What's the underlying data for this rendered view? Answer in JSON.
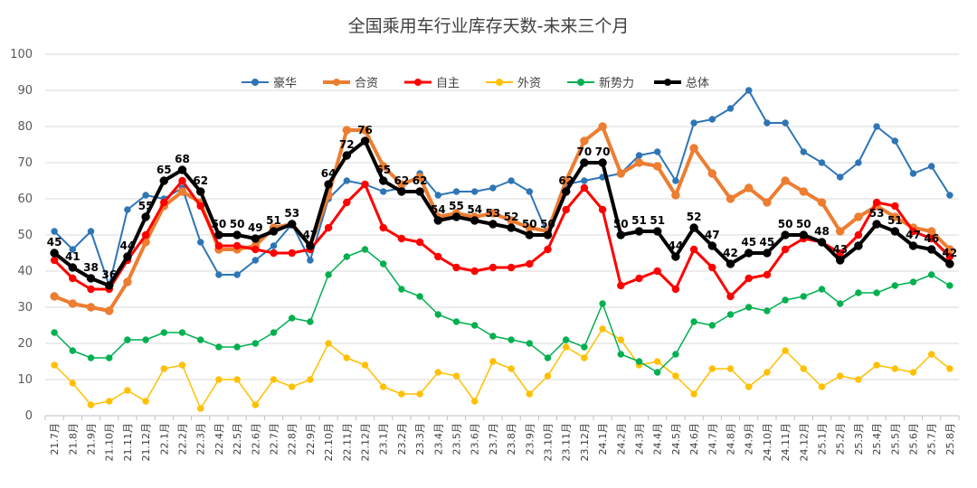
{
  "chart_data": {
    "type": "line",
    "title": "全国乘用车行业库存天数-未来三个月",
    "xlabel": "",
    "ylabel": "",
    "ylim": [
      0,
      100
    ],
    "yticks": [
      0,
      10,
      20,
      30,
      40,
      50,
      60,
      70,
      80,
      90,
      100
    ],
    "grid": "horizontal",
    "legend_position": "top",
    "x": [
      "21.7月",
      "21.8月",
      "21.9月",
      "21.10月",
      "21.11月",
      "21.12月",
      "22.1月",
      "22.2月",
      "22.3月",
      "22.4月",
      "22.5月",
      "22.6月",
      "22.7月",
      "22.8月",
      "22.9月",
      "22.10月",
      "22.11月",
      "22.12月",
      "23.1月",
      "23.2月",
      "23.3月",
      "23.4月",
      "23.5月",
      "23.6月",
      "23.7月",
      "23.8月",
      "23.9月",
      "23.10月",
      "23.11月",
      "23.12月",
      "24.1月",
      "24.2月",
      "24.3月",
      "24.4月",
      "24.5月",
      "24.6月",
      "24.7月",
      "24.8月",
      "24.9月",
      "24.10月",
      "24.11月",
      "24.12月",
      "25.1月",
      "25.2月",
      "25.3月",
      "25.4月",
      "25.5月",
      "25.6月",
      "25.7月",
      "25.8月"
    ],
    "series": [
      {
        "name": "豪华",
        "color": "#2E75B6",
        "width": 2,
        "values": [
          51,
          46,
          51,
          36,
          57,
          61,
          60,
          63,
          48,
          39,
          39,
          43,
          47,
          53,
          43,
          60,
          65,
          64,
          62,
          63,
          67,
          61,
          62,
          62,
          63,
          65,
          62,
          50,
          64,
          65,
          66,
          67,
          72,
          73,
          65,
          81,
          82,
          85,
          90,
          81,
          81,
          73,
          70,
          66,
          70,
          80,
          76,
          67,
          69,
          61
        ]
      },
      {
        "name": "合资",
        "color": "#ED7D31",
        "width": 4,
        "values": [
          33,
          31,
          30,
          29,
          37,
          48,
          58,
          62,
          59,
          46,
          46,
          47,
          52,
          53,
          47,
          61,
          79,
          79,
          69,
          64,
          66,
          55,
          56,
          55,
          56,
          54,
          52,
          51,
          65,
          76,
          80,
          67,
          70,
          69,
          61,
          74,
          67,
          60,
          63,
          59,
          65,
          62,
          59,
          51,
          55,
          58,
          55,
          52,
          51,
          46
        ]
      },
      {
        "name": "自主",
        "color": "#FF0000",
        "width": 3,
        "values": [
          43,
          38,
          35,
          35,
          43,
          50,
          59,
          65,
          58,
          47,
          47,
          46,
          45,
          45,
          46,
          52,
          59,
          64,
          52,
          49,
          48,
          44,
          41,
          40,
          41,
          41,
          42,
          46,
          57,
          63,
          57,
          36,
          38,
          40,
          35,
          46,
          41,
          33,
          38,
          39,
          46,
          49,
          48,
          45,
          50,
          59,
          58,
          51,
          49,
          44
        ]
      },
      {
        "name": "外资",
        "color": "#FFC000",
        "width": 1.5,
        "values": [
          14,
          9,
          3,
          4,
          7,
          4,
          13,
          14,
          2,
          10,
          10,
          3,
          10,
          8,
          10,
          20,
          16,
          14,
          8,
          6,
          6,
          12,
          11,
          4,
          15,
          13,
          6,
          11,
          19,
          16,
          24,
          21,
          14,
          15,
          11,
          6,
          13,
          13,
          8,
          12,
          18,
          13,
          8,
          11,
          10,
          14,
          13,
          12,
          17,
          13
        ]
      },
      {
        "name": "新势力",
        "color": "#00B050",
        "width": 1.5,
        "values": [
          23,
          18,
          16,
          16,
          21,
          21,
          23,
          23,
          21,
          19,
          19,
          20,
          23,
          27,
          26,
          39,
          44,
          46,
          42,
          35,
          33,
          28,
          26,
          25,
          22,
          21,
          20,
          16,
          21,
          19,
          31,
          17,
          15,
          12,
          17,
          26,
          25,
          28,
          30,
          29,
          32,
          33,
          35,
          31,
          34,
          34,
          36,
          37,
          39,
          36
        ]
      },
      {
        "name": "总体",
        "color": "#000000",
        "width": 4,
        "values": [
          45,
          41,
          38,
          36,
          44,
          55,
          65,
          68,
          62,
          50,
          50,
          49,
          51,
          53,
          47,
          64,
          72,
          76,
          65,
          62,
          62,
          54,
          55,
          54,
          53,
          52,
          50,
          50,
          62,
          70,
          70,
          50,
          51,
          51,
          44,
          52,
          47,
          42,
          45,
          45,
          50,
          50,
          48,
          43,
          47,
          53,
          51,
          47,
          46,
          42
        ]
      }
    ],
    "data_labels": {
      "series": "总体",
      "entries": [
        {
          "x": "21.7月",
          "label": "45"
        },
        {
          "x": "21.8月",
          "label": "41"
        },
        {
          "x": "21.9月",
          "label": "38"
        },
        {
          "x": "21.10月",
          "label": "36"
        },
        {
          "x": "21.11月",
          "label": "44"
        },
        {
          "x": "21.12月",
          "label": "55"
        },
        {
          "x": "22.1月",
          "label": "65"
        },
        {
          "x": "22.2月",
          "label": "68"
        },
        {
          "x": "22.3月",
          "label": "62"
        },
        {
          "x": "22.4月",
          "label": "50"
        },
        {
          "x": "22.5月",
          "label": "50"
        },
        {
          "x": "22.6月",
          "label": "49"
        },
        {
          "x": "22.7月",
          "label": "51"
        },
        {
          "x": "22.8月",
          "label": "53"
        },
        {
          "x": "22.9月",
          "label": "47"
        },
        {
          "x": "22.10月",
          "label": "64"
        },
        {
          "x": "22.11月",
          "label": "72"
        },
        {
          "x": "22.12月",
          "label": "76"
        },
        {
          "x": "23.1月",
          "label": "65"
        },
        {
          "x": "23.2月",
          "label": "62"
        },
        {
          "x": "23.3月",
          "label": "62"
        },
        {
          "x": "23.4月",
          "label": "54"
        },
        {
          "x": "23.5月",
          "label": "55"
        },
        {
          "x": "23.6月",
          "label": "54"
        },
        {
          "x": "23.7月",
          "label": "53"
        },
        {
          "x": "23.8月",
          "label": "52"
        },
        {
          "x": "23.9月",
          "label": "50"
        },
        {
          "x": "23.10月",
          "label": "50"
        },
        {
          "x": "23.11月",
          "label": "62"
        },
        {
          "x": "23.12月",
          "label": "70"
        },
        {
          "x": "24.1月",
          "label": "70"
        },
        {
          "x": "24.2月",
          "label": "50"
        },
        {
          "x": "24.3月",
          "label": "51"
        },
        {
          "x": "24.4月",
          "label": "51"
        },
        {
          "x": "24.5月",
          "label": "44"
        },
        {
          "x": "24.6月",
          "label": "52"
        },
        {
          "x": "24.7月",
          "label": "47"
        },
        {
          "x": "24.8月",
          "label": "42"
        },
        {
          "x": "24.9月",
          "label": "45"
        },
        {
          "x": "24.10月",
          "label": "45"
        },
        {
          "x": "24.11月",
          "label": "50"
        },
        {
          "x": "24.12月",
          "label": "50"
        },
        {
          "x": "25.1月",
          "label": "48"
        },
        {
          "x": "25.2月",
          "label": "43"
        },
        {
          "x": "25.4月",
          "label": "53"
        },
        {
          "x": "25.5月",
          "label": "51"
        },
        {
          "x": "25.6月",
          "label": "47"
        },
        {
          "x": "25.7月",
          "label": "46"
        },
        {
          "x": "25.8月",
          "label": "42"
        }
      ]
    }
  }
}
